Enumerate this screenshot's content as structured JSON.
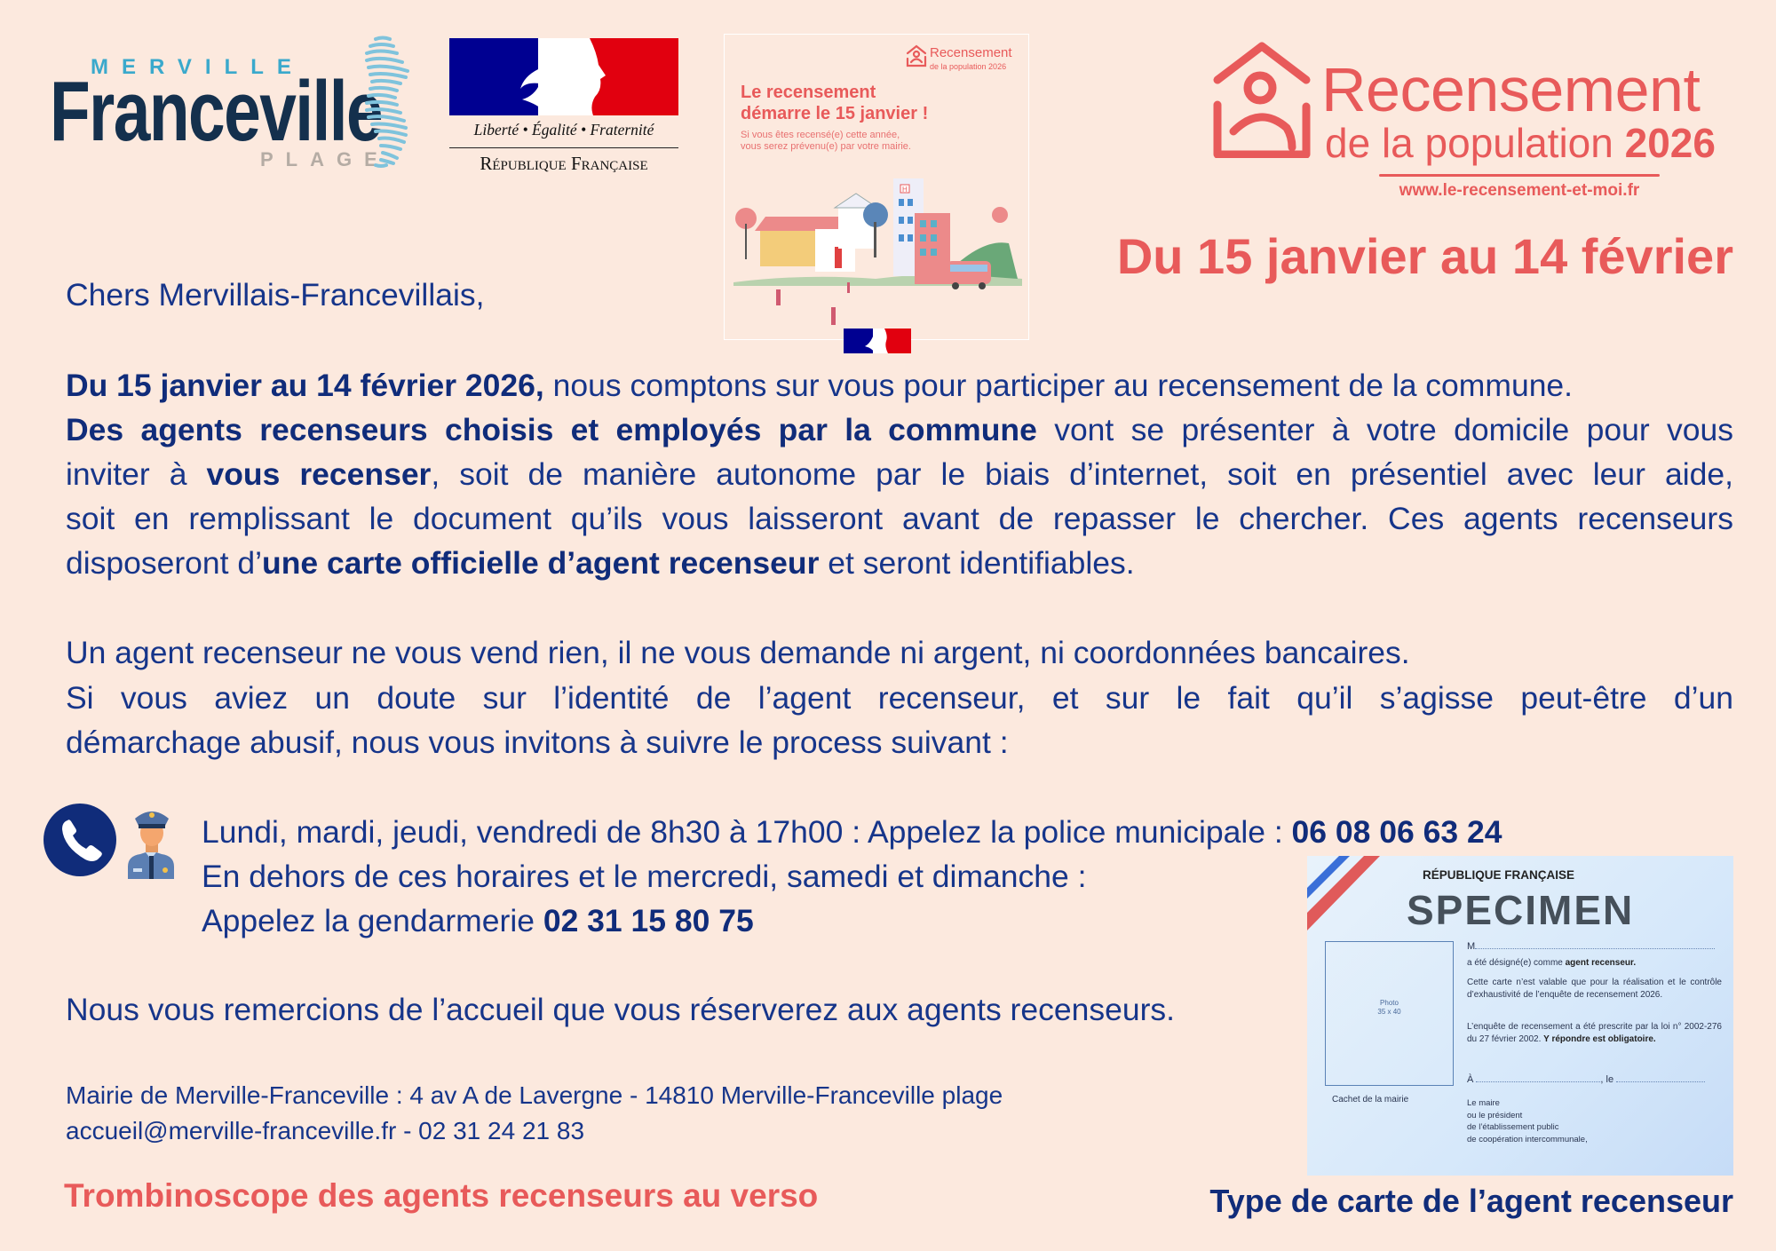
{
  "logos": {
    "merville": {
      "top": "MERVILLE",
      "main": "Franceville",
      "bottom": "PLAGE"
    },
    "republique": {
      "motto": "Liberté • Égalité • Fraternité",
      "name": "République Française",
      "colors": {
        "blue": "#000091",
        "red": "#e1000f"
      }
    },
    "recensement": {
      "title": "Recensement",
      "subtitle": "de la population",
      "year": "2026",
      "url": "www.le-recensement-et-moi.fr",
      "color": "#e85a5a"
    }
  },
  "poster": {
    "logo_title": "Recensement",
    "logo_subtitle": "de la population 2026",
    "title_line1": "Le recensement",
    "title_line2": "démarre le 15 janvier !",
    "sub_line1": "Si vous êtes recensé(e) cette année,",
    "sub_line2": "vous serez prévenu(e) par votre mairie.",
    "hospital_sign": "H"
  },
  "heading": "Du 15 janvier au 14 février",
  "body": {
    "greeting": "Chers Mervillais-Francevillais,",
    "p1": [
      [
        {
          "t": "Du 15 janvier au 14 février 2026,"
        },
        {
          "t": " nous comptons sur vous pour participer au recensement de la commune."
        }
      ],
      [
        {
          "t": "Des agents recenseurs choisis et employés par la commune"
        },
        {
          "t": " vont se présenter à votre domicile pour vous"
        }
      ],
      [
        {
          "t": "inviter à "
        },
        {
          "t": "vous recenser"
        },
        {
          "t": ", soit de manière autonome par le biais d’internet, soit en présentiel avec leur aide,"
        }
      ],
      [
        {
          "t": "soit en remplissant le document qu’ils vous laisseront avant de repasser le chercher. Ces agents recenseurs"
        }
      ],
      [
        {
          "t": "disposeront d’"
        },
        {
          "t": "une carte officielle d’agent recenseur"
        },
        {
          "t": " et seront identifiables."
        }
      ]
    ],
    "p2": [
      "Un agent recenseur ne vous vend rien, il ne vous demande ni argent, ni coordonnées bancaires.",
      "Si vous aviez un doute sur l’identité de l’agent recenseur, et sur le fait qu’il s’agisse peut-être d’un",
      "démarchage abusif, nous vous invitons à suivre le process suivant :"
    ],
    "contact": {
      "icons": [
        "phone-icon",
        "police-officer-icon"
      ],
      "line1": "Lundi, mardi, jeudi, vendredi de 8h30 à 17h00 : Appelez la police municipale : ",
      "police_phone": "06 08 06 63 24",
      "line2": "En dehors de ces horaires et le mercredi, samedi et dimanche :",
      "line3": "Appelez la gendarmerie ",
      "gendarmerie_phone": "02 31 15 80 75"
    },
    "thanks": "Nous vous remercions de l’accueil que vous réserverez aux agents recenseurs.",
    "address": "Mairie de Merville-Franceville : 4 av A de Lavergne - 14810 Merville-Franceville plage",
    "email_phone": "accueil@merville-franceville.fr - 02 31 24 21 83"
  },
  "footer": {
    "trombinoscope": "Trombinoscope des agents recenseurs au verso",
    "card_caption": "Type de carte de l’agent recenseur"
  },
  "card": {
    "header": "RÉPUBLIQUE FRANÇAISE",
    "photo_label": "Photo",
    "photo_size": "35 x 40",
    "stamp": "Cachet de la mairie",
    "m": "M",
    "designated": "a été désigné(e) comme ",
    "designated_bold": "agent recenseur.",
    "validity": "Cette carte n’est valable que pour la réalisation et le contrôle d’exhaustivité de l’enquête de recensement 2026.",
    "law": "L’enquête de recensement a été prescrite par la loi n° 2002-276 du 27 février 2002. ",
    "law_bold": "Y répondre est obligatoire.",
    "place": "À",
    "date": ", le",
    "signatory": [
      "Le maire",
      "ou le président",
      "de l’établissement public",
      "de coopération intercommunale,"
    ],
    "watermark": "SPECIMEN"
  },
  "colors": {
    "background": "#fce9de",
    "text": "#16358a",
    "accent": "#e85a5a"
  }
}
